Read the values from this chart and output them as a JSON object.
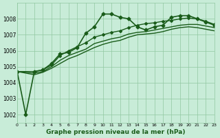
{
  "title": "Graphe pression niveau de la mer (hPa)",
  "background_color": "#c8ecd8",
  "grid_color": "#90c8a0",
  "line_color": "#1a5c1a",
  "xlim": [
    0,
    23
  ],
  "ylim": [
    1001.5,
    1009
  ],
  "yticks": [
    1002,
    1003,
    1004,
    1005,
    1006,
    1007,
    1008
  ],
  "xtick_labels": [
    "0",
    "1",
    "2",
    "3",
    "4",
    "5",
    "6",
    "7",
    "8",
    "9",
    "10",
    "11",
    "12",
    "13",
    "14",
    "15",
    "16",
    "17",
    "18",
    "19",
    "20",
    "21",
    "22",
    "23"
  ],
  "series": [
    {
      "x": [
        0,
        1,
        2,
        3,
        4,
        5,
        6,
        7,
        8,
        9,
        10,
        11,
        12,
        13,
        14,
        15,
        16,
        17,
        18,
        19,
        20,
        21,
        22,
        23
      ],
      "y": [
        1004.7,
        1002.0,
        1004.7,
        1004.8,
        1005.2,
        1005.8,
        1005.9,
        1006.2,
        1007.1,
        1007.5,
        1008.3,
        1008.3,
        1008.1,
        1008.0,
        1007.5,
        1007.3,
        1007.5,
        1007.6,
        1008.1,
        1008.2,
        1008.2,
        1008.0,
        1007.8,
        1007.6
      ],
      "marker": "D",
      "markersize": 2.5,
      "linewidth": 1.2,
      "linestyle": "-"
    },
    {
      "x": [
        0,
        2,
        3,
        4,
        5,
        6,
        7,
        8,
        9,
        10,
        11,
        12,
        13,
        14,
        15,
        16,
        17,
        18,
        19,
        20,
        21,
        22,
        23
      ],
      "y": [
        1004.7,
        1004.7,
        1004.8,
        1005.1,
        1005.7,
        1006.0,
        1006.25,
        1006.5,
        1006.85,
        1007.0,
        1007.15,
        1007.25,
        1007.45,
        1007.6,
        1007.7,
        1007.75,
        1007.85,
        1007.9,
        1008.0,
        1008.05,
        1008.0,
        1007.85,
        1007.65
      ],
      "marker": "D",
      "markersize": 2.0,
      "linewidth": 1.0,
      "linestyle": "-"
    },
    {
      "x": [
        0,
        2,
        3,
        4,
        5,
        6,
        7,
        8,
        9,
        10,
        11,
        12,
        13,
        14,
        15,
        16,
        17,
        18,
        19,
        20,
        21,
        22,
        23
      ],
      "y": [
        1004.7,
        1004.6,
        1004.7,
        1005.0,
        1005.4,
        1005.7,
        1005.9,
        1006.1,
        1006.45,
        1006.6,
        1006.75,
        1006.85,
        1007.05,
        1007.15,
        1007.2,
        1007.3,
        1007.4,
        1007.5,
        1007.6,
        1007.65,
        1007.65,
        1007.55,
        1007.45
      ],
      "marker": null,
      "markersize": 0,
      "linewidth": 1.0,
      "linestyle": "-"
    },
    {
      "x": [
        0,
        2,
        3,
        4,
        5,
        6,
        7,
        8,
        9,
        10,
        11,
        12,
        13,
        14,
        15,
        16,
        17,
        18,
        19,
        20,
        21,
        22,
        23
      ],
      "y": [
        1004.7,
        1004.5,
        1004.65,
        1004.9,
        1005.2,
        1005.5,
        1005.7,
        1005.95,
        1006.2,
        1006.4,
        1006.55,
        1006.65,
        1006.85,
        1007.0,
        1007.05,
        1007.1,
        1007.2,
        1007.35,
        1007.45,
        1007.5,
        1007.45,
        1007.35,
        1007.25
      ],
      "marker": null,
      "markersize": 0,
      "linewidth": 1.0,
      "linestyle": "-"
    }
  ]
}
